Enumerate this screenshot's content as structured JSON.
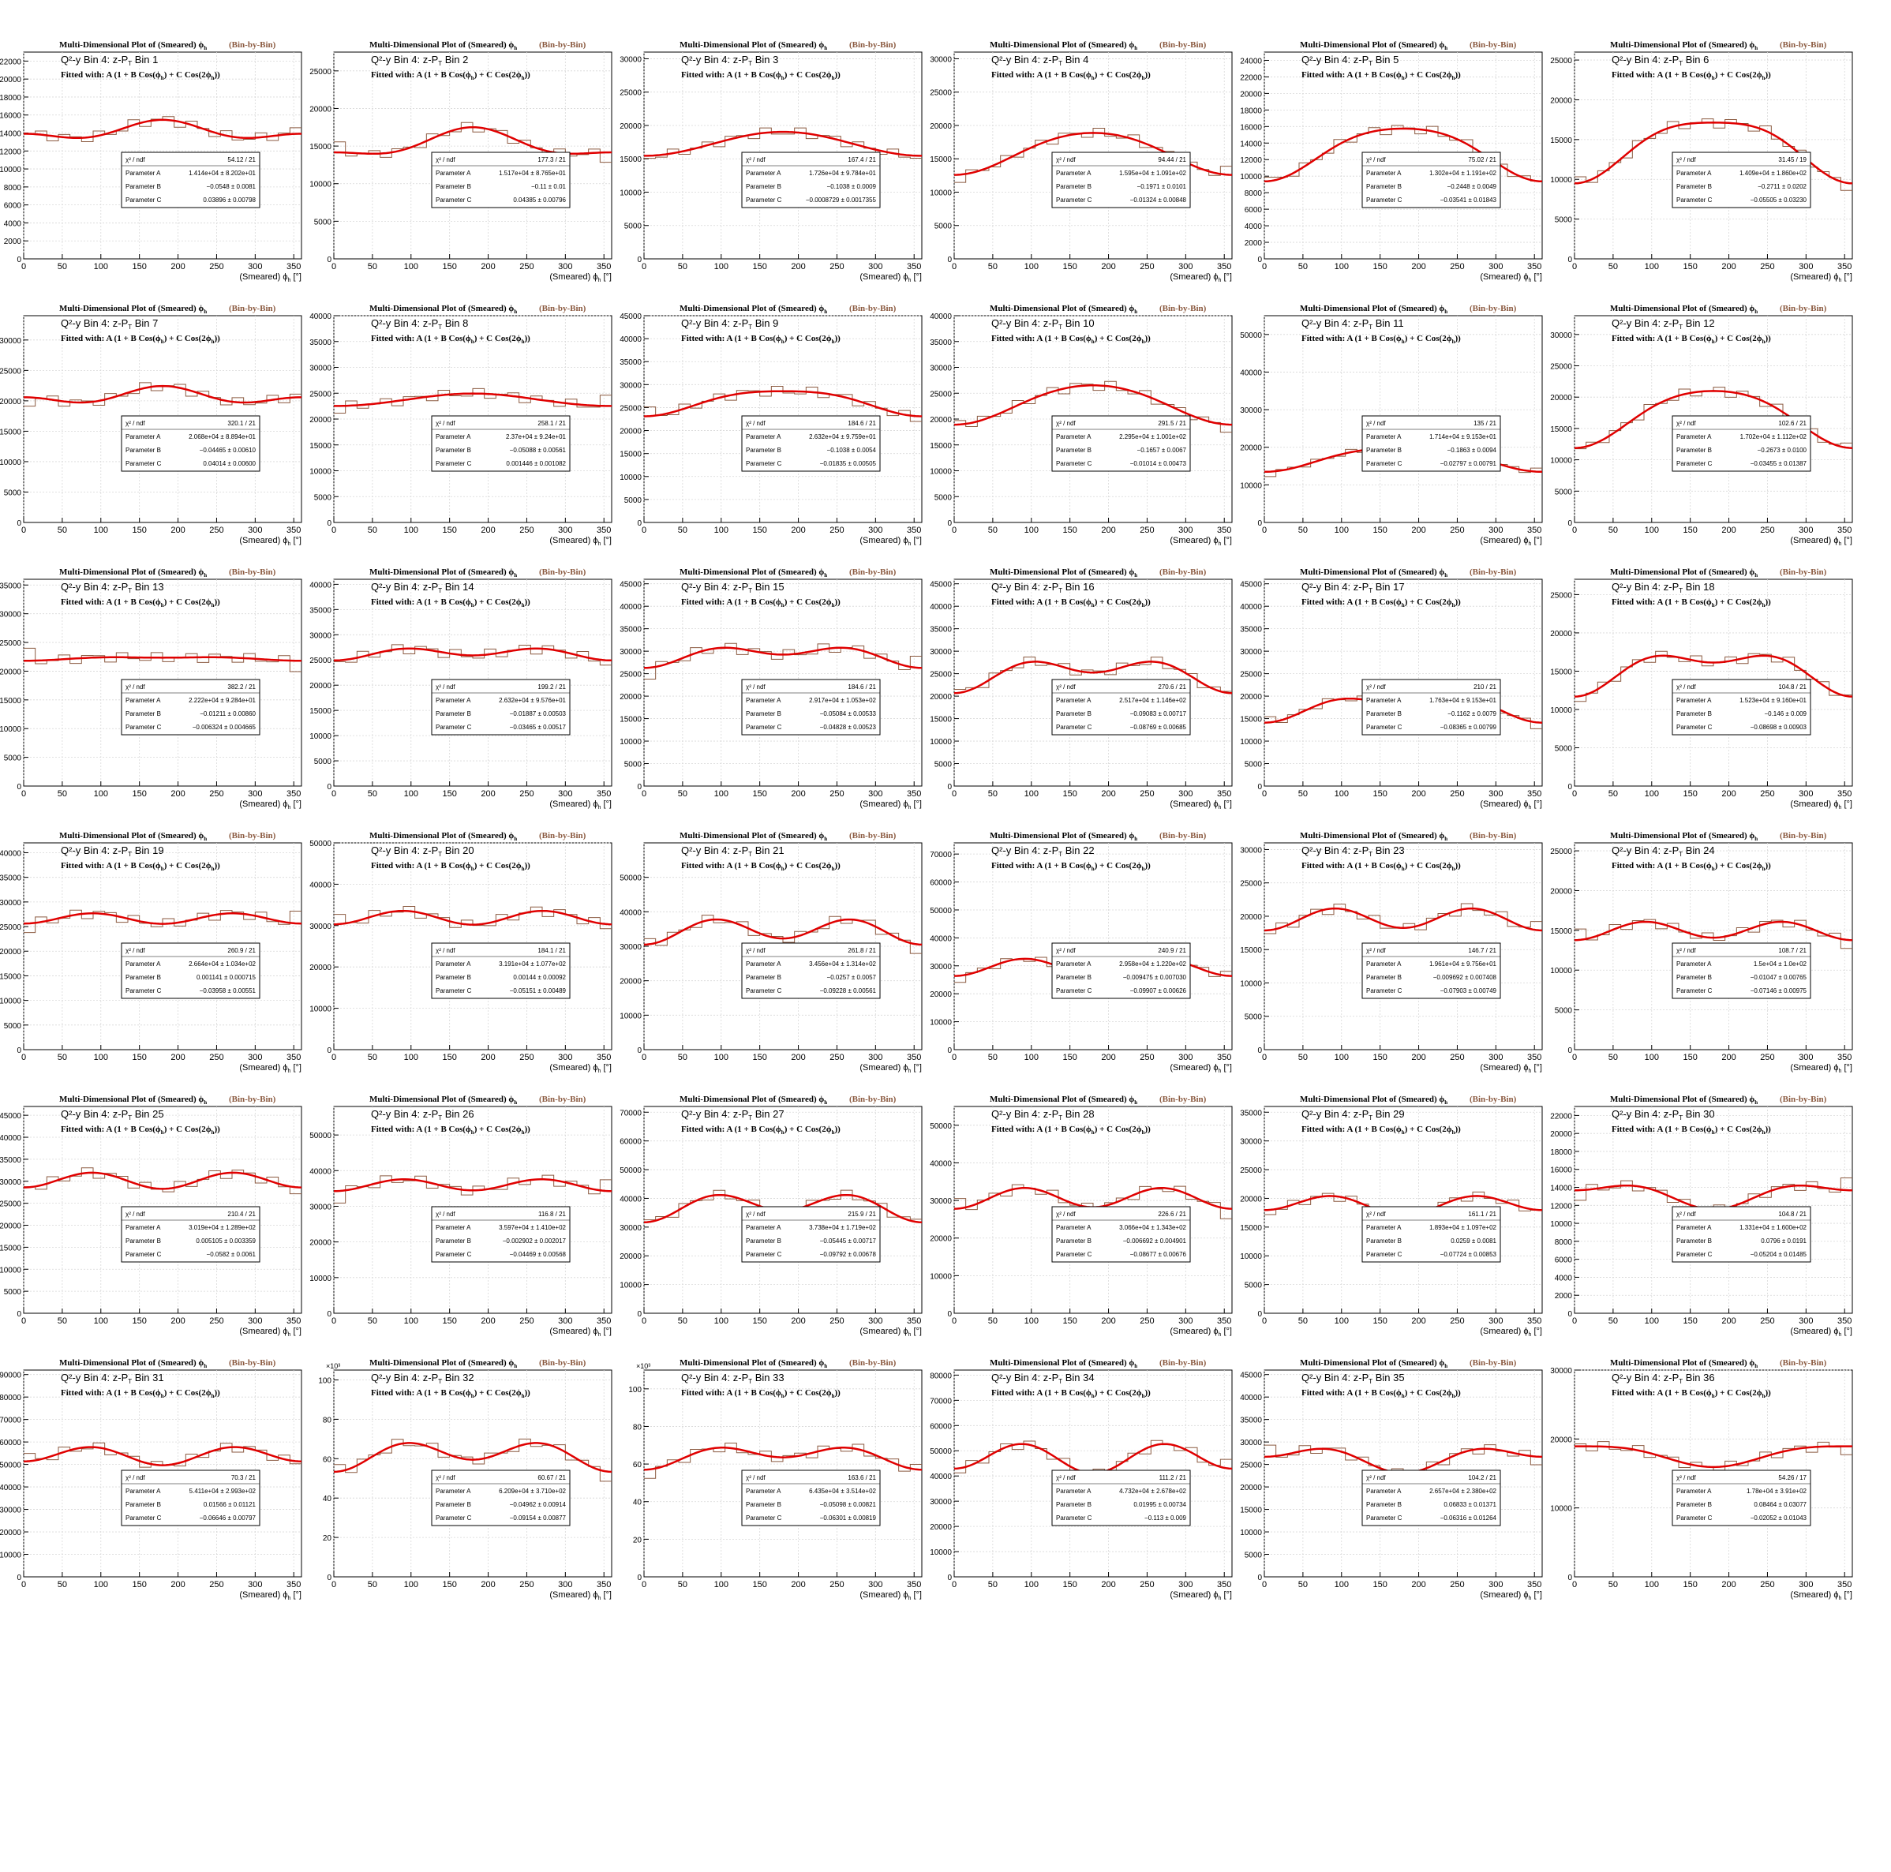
{
  "page": {
    "super_title": "Multi-Dimensional Plot of (Smeared)",
    "super_phi": "ϕ",
    "super_phi_sub": "h",
    "bin_by_bin": "(Bin-by-Bin)",
    "fit_label": "Fitted with: A (1 + B Cos(ϕ",
    "fit_mid": ") + C Cos(2ϕ",
    "fit_end": "))",
    "x_axis_label": "(Smeared) ϕ",
    "x_axis_unit": " [°]",
    "chi2_label": "χ² / ndf",
    "param_a_label": "Parameter A",
    "param_b_label": "Parameter B",
    "param_c_label": "Parameter C",
    "exp3_label": "×10³"
  },
  "colors": {
    "fit_line": "#e00000",
    "histogram": "#8b5a40",
    "title_note": "#8b5a40",
    "grid": "#d8d8d8"
  },
  "chart_data": [
    {
      "type": "bar",
      "title": "Q²-y Bin 4: z-P_T Bin 1",
      "ylim": [
        0,
        23000
      ],
      "yticks": [
        2000,
        4000,
        6000,
        8000,
        10000,
        12000,
        14000,
        16000,
        18000,
        20000,
        22000
      ],
      "fit": {
        "A": 14140,
        "B": -0.0548,
        "C": 0.03896
      },
      "stats": {
        "chi2": "54.12 / 21",
        "A": "1.414e+04 ± 8.202e+01",
        "B": "−0.0548 ± 0.0081",
        "C": "0.03896 ± 0.00798"
      }
    },
    {
      "type": "bar",
      "title": "Q²-y Bin 4: z-P_T Bin 2",
      "ylim": [
        0,
        27500
      ],
      "yticks": [
        5000,
        10000,
        15000,
        20000,
        25000
      ],
      "fit": {
        "A": 15170,
        "B": -0.11,
        "C": 0.04385
      },
      "stats": {
        "chi2": "177.3 / 21",
        "A": "1.517e+04 ± 8.765e+01",
        "B": "−0.11 ± 0.01",
        "C": "0.04385 ± 0.00796"
      }
    },
    {
      "type": "bar",
      "title": "Q²-y Bin 4: z-P_T Bin 3",
      "ylim": [
        0,
        31000
      ],
      "yticks": [
        5000,
        10000,
        15000,
        20000,
        25000,
        30000
      ],
      "fit": {
        "A": 17260,
        "B": -0.1038,
        "C": -0.0008729
      },
      "stats": {
        "chi2": "167.4 / 21",
        "A": "1.726e+04 ± 9.784e+01",
        "B": "−0.1038 ± 0.0009",
        "C": "−0.0008729 ± 0.0017355"
      }
    },
    {
      "type": "bar",
      "title": "Q²-y Bin 4: z-P_T Bin 4",
      "ylim": [
        0,
        31000
      ],
      "yticks": [
        5000,
        10000,
        15000,
        20000,
        25000,
        30000
      ],
      "fit": {
        "A": 15950,
        "B": -0.1971,
        "C": -0.01324
      },
      "stats": {
        "chi2": "94.44 / 21",
        "A": "1.595e+04 ± 1.091e+02",
        "B": "−0.1971 ± 0.0101",
        "C": "−0.01324 ± 0.00848"
      }
    },
    {
      "type": "bar",
      "title": "Q²-y Bin 4: z-P_T Bin 5",
      "ylim": [
        0,
        25000
      ],
      "yticks": [
        2000,
        4000,
        6000,
        8000,
        10000,
        12000,
        14000,
        16000,
        18000,
        20000,
        22000,
        24000
      ],
      "fit": {
        "A": 13020,
        "B": -0.2448,
        "C": -0.03541
      },
      "stats": {
        "chi2": "75.02 / 21",
        "A": "1.302e+04 ± 1.191e+02",
        "B": "−0.2448 ± 0.0049",
        "C": "−0.03541 ± 0.01843"
      }
    },
    {
      "type": "bar",
      "title": "Q²-y Bin 4: z-P_T Bin 6",
      "ylim": [
        0,
        26000
      ],
      "yticks": [
        5000,
        10000,
        15000,
        20000,
        25000
      ],
      "fit": {
        "A": 14090,
        "B": -0.2711,
        "C": -0.05505
      },
      "stats": {
        "chi2": "31.45 / 19",
        "A": "1.409e+04 ± 1.860e+02",
        "B": "−0.2711 ± 0.0202",
        "C": "−0.05505 ± 0.03230"
      }
    },
    {
      "type": "bar",
      "title": "Q²-y Bin 4: z-P_T Bin 7",
      "ylim": [
        0,
        34000
      ],
      "yticks": [
        5000,
        10000,
        15000,
        20000,
        25000,
        30000
      ],
      "fit": {
        "A": 20680,
        "B": -0.04465,
        "C": 0.04014
      },
      "stats": {
        "chi2": "320.1 / 21",
        "A": "2.068e+04 ± 8.894e+01",
        "B": "−0.04465 ± 0.00610",
        "C": "0.04014 ± 0.00600"
      }
    },
    {
      "type": "bar",
      "title": "Q²-y Bin 4: z-P_T Bin 8",
      "ylim": [
        0,
        40000
      ],
      "yticks": [
        5000,
        10000,
        15000,
        20000,
        25000,
        30000,
        35000,
        40000
      ],
      "fit": {
        "A": 23700,
        "B": -0.05088,
        "C": 0.001446
      },
      "stats": {
        "chi2": "258.1 / 21",
        "A": "2.37e+04 ± 9.24e+01",
        "B": "−0.05088 ± 0.00561",
        "C": "0.001446 ± 0.001082"
      }
    },
    {
      "type": "bar",
      "title": "Q²-y Bin 4: z-P_T Bin 9",
      "ylim": [
        0,
        45000
      ],
      "yticks": [
        5000,
        10000,
        15000,
        20000,
        25000,
        30000,
        35000,
        40000,
        45000
      ],
      "fit": {
        "A": 26320,
        "B": -0.1038,
        "C": -0.01835
      },
      "stats": {
        "chi2": "184.6 / 21",
        "A": "2.632e+04 ± 9.759e+01",
        "B": "−0.1038 ± 0.0054",
        "C": "−0.01835 ± 0.00505"
      }
    },
    {
      "type": "bar",
      "title": "Q²-y Bin 4: z-P_T Bin 10",
      "ylim": [
        0,
        40000
      ],
      "yticks": [
        5000,
        10000,
        15000,
        20000,
        25000,
        30000,
        35000,
        40000
      ],
      "fit": {
        "A": 22950,
        "B": -0.1657,
        "C": -0.01014
      },
      "stats": {
        "chi2": "291.5 / 21",
        "A": "2.295e+04 ± 1.001e+02",
        "B": "−0.1657 ± 0.0067",
        "C": "−0.01014 ± 0.00473"
      }
    },
    {
      "type": "bar",
      "title": "Q²-y Bin 4: z-P_T Bin 11",
      "ylim": [
        0,
        55000
      ],
      "yticks": [
        10000,
        20000,
        30000,
        40000,
        50000
      ],
      "fit": {
        "A": 17140,
        "B": -0.1863,
        "C": -0.02797
      },
      "stats": {
        "chi2": "135 / 21",
        "A": "1.714e+04 ± 9.153e+01",
        "B": "−0.1863 ± 0.0094",
        "C": "−0.02797 ± 0.00791"
      }
    },
    {
      "type": "bar",
      "title": "Q²-y Bin 4: z-P_T Bin 12",
      "ylim": [
        0,
        33000
      ],
      "yticks": [
        5000,
        10000,
        15000,
        20000,
        25000,
        30000
      ],
      "fit": {
        "A": 17020,
        "B": -0.2673,
        "C": -0.03455
      },
      "stats": {
        "chi2": "102.6 / 21",
        "A": "1.702e+04 ± 1.112e+02",
        "B": "−0.2673 ± 0.0100",
        "C": "−0.03455 ± 0.01387"
      }
    },
    {
      "type": "bar",
      "title": "Q²-y Bin 4: z-P_T Bin 13",
      "ylim": [
        0,
        36000
      ],
      "yticks": [
        5000,
        10000,
        15000,
        20000,
        25000,
        30000,
        35000
      ],
      "fit": {
        "A": 22220,
        "B": -0.01211,
        "C": -0.006324
      },
      "stats": {
        "chi2": "382.2 / 21",
        "A": "2.222e+04 ± 9.284e+01",
        "B": "−0.01211 ± 0.00860",
        "C": "−0.006324 ± 0.004665"
      }
    },
    {
      "type": "bar",
      "title": "Q²-y Bin 4: z-P_T Bin 14",
      "ylim": [
        0,
        41000
      ],
      "yticks": [
        5000,
        10000,
        15000,
        20000,
        25000,
        30000,
        35000,
        40000
      ],
      "fit": {
        "A": 26320,
        "B": -0.01887,
        "C": -0.03465
      },
      "stats": {
        "chi2": "199.2 / 21",
        "A": "2.632e+04 ± 9.576e+01",
        "B": "−0.01887 ± 0.00503",
        "C": "−0.03465 ± 0.00517"
      }
    },
    {
      "type": "bar",
      "title": "Q²-y Bin 4: z-P_T Bin 15",
      "ylim": [
        0,
        46000
      ],
      "yticks": [
        5000,
        10000,
        15000,
        20000,
        25000,
        30000,
        35000,
        40000,
        45000
      ],
      "fit": {
        "A": 29170,
        "B": -0.05084,
        "C": -0.04828
      },
      "stats": {
        "chi2": "184.6 / 21",
        "A": "2.917e+04 ± 1.053e+02",
        "B": "−0.05084 ± 0.00533",
        "C": "−0.04828 ± 0.00523"
      }
    },
    {
      "type": "bar",
      "title": "Q²-y Bin 4: z-P_T Bin 16",
      "ylim": [
        0,
        46000
      ],
      "yticks": [
        5000,
        10000,
        15000,
        20000,
        25000,
        30000,
        35000,
        40000,
        45000
      ],
      "fit": {
        "A": 25170,
        "B": -0.09083,
        "C": -0.08769
      },
      "stats": {
        "chi2": "270.6 / 21",
        "A": "2.517e+04 ± 1.146e+02",
        "B": "−0.09083 ± 0.00717",
        "C": "−0.08769 ± 0.00685"
      }
    },
    {
      "type": "bar",
      "title": "Q²-y Bin 4: z-P_T Bin 17",
      "ylim": [
        0,
        46000
      ],
      "yticks": [
        5000,
        10000,
        15000,
        20000,
        25000,
        30000,
        35000,
        40000,
        45000
      ],
      "fit": {
        "A": 17630,
        "B": -0.1162,
        "C": -0.08365
      },
      "stats": {
        "chi2": "210 / 21",
        "A": "1.763e+04 ± 9.153e+01",
        "B": "−0.1162 ± 0.0079",
        "C": "−0.08365 ± 0.00799"
      }
    },
    {
      "type": "bar",
      "title": "Q²-y Bin 4: z-P_T Bin 18",
      "ylim": [
        0,
        27000
      ],
      "yticks": [
        5000,
        10000,
        15000,
        20000,
        25000
      ],
      "fit": {
        "A": 15230,
        "B": -0.146,
        "C": -0.08698
      },
      "stats": {
        "chi2": "104.8 / 21",
        "A": "1.523e+04 ± 9.160e+01",
        "B": "−0.146 ± 0.009",
        "C": "−0.08698 ± 0.00903"
      }
    },
    {
      "type": "bar",
      "title": "Q²-y Bin 4: z-P_T Bin 19",
      "ylim": [
        0,
        42000
      ],
      "yticks": [
        5000,
        10000,
        15000,
        20000,
        25000,
        30000,
        35000,
        40000
      ],
      "fit": {
        "A": 26640,
        "B": 0.001141,
        "C": -0.03958
      },
      "stats": {
        "chi2": "260.9 / 21",
        "A": "2.664e+04 ± 1.034e+02",
        "B": "0.001141 ± 0.000715",
        "C": "−0.03958 ± 0.00551"
      }
    },
    {
      "type": "bar",
      "title": "Q²-y Bin 4: z-P_T Bin 20",
      "ylim": [
        0,
        50000
      ],
      "yticks": [
        10000,
        20000,
        30000,
        40000,
        50000
      ],
      "fit": {
        "A": 31910,
        "B": 0.00144,
        "C": -0.05151
      },
      "stats": {
        "chi2": "184.1 / 21",
        "A": "3.191e+04 ± 1.077e+02",
        "B": "0.00144 ± 0.00092",
        "C": "−0.05151 ± 0.00489"
      }
    },
    {
      "type": "bar",
      "title": "Q²-y Bin 4: z-P_T Bin 21",
      "ylim": [
        0,
        60000
      ],
      "yticks": [
        10000,
        20000,
        30000,
        40000,
        50000
      ],
      "fit": {
        "A": 34560,
        "B": -0.0257,
        "C": -0.09228
      },
      "stats": {
        "chi2": "261.8 / 21",
        "A": "3.456e+04 ± 1.314e+02",
        "B": "−0.0257 ± 0.0057",
        "C": "−0.09228 ± 0.00561"
      }
    },
    {
      "type": "bar",
      "title": "Q²-y Bin 4: z-P_T Bin 22",
      "ylim": [
        0,
        74000
      ],
      "yticks": [
        10000,
        20000,
        30000,
        40000,
        50000,
        60000,
        70000
      ],
      "fit": {
        "A": 29580,
        "B": -0.009475,
        "C": -0.09907
      },
      "stats": {
        "chi2": "240.9 / 21",
        "A": "2.958e+04 ± 1.220e+02",
        "B": "−0.009475 ± 0.007030",
        "C": "−0.09907 ± 0.00626"
      }
    },
    {
      "type": "bar",
      "title": "Q²-y Bin 4: z-P_T Bin 23",
      "ylim": [
        0,
        31000
      ],
      "yticks": [
        5000,
        10000,
        15000,
        20000,
        25000,
        30000
      ],
      "fit": {
        "A": 19610,
        "B": -0.009692,
        "C": -0.07903
      },
      "stats": {
        "chi2": "146.7 / 21",
        "A": "1.961e+04 ± 9.756e+01",
        "B": "−0.009692 ± 0.007408",
        "C": "−0.07903 ± 0.00749"
      }
    },
    {
      "type": "bar",
      "title": "Q²-y Bin 4: z-P_T Bin 24",
      "ylim": [
        0,
        26000
      ],
      "yticks": [
        5000,
        10000,
        15000,
        20000,
        25000
      ],
      "fit": {
        "A": 15000,
        "B": -0.01047,
        "C": -0.07146
      },
      "stats": {
        "chi2": "108.7 / 21",
        "A": "1.5e+04 ± 1.0e+02",
        "B": "−0.01047 ± 0.00765",
        "C": "−0.07146 ± 0.00975"
      }
    },
    {
      "type": "bar",
      "title": "Q²-y Bin 4: z-P_T Bin 25",
      "ylim": [
        0,
        47000
      ],
      "yticks": [
        5000,
        10000,
        15000,
        20000,
        25000,
        30000,
        35000,
        40000,
        45000
      ],
      "fit": {
        "A": 30190,
        "B": 0.005105,
        "C": -0.0582
      },
      "stats": {
        "chi2": "210.4 / 21",
        "A": "3.019e+04 ± 1.289e+02",
        "B": "0.005105 ± 0.003359",
        "C": "−0.0582 ± 0.0061"
      }
    },
    {
      "type": "bar",
      "title": "Q²-y Bin 4: z-P_T Bin 26",
      "ylim": [
        0,
        58000
      ],
      "yticks": [
        10000,
        20000,
        30000,
        40000,
        50000
      ],
      "fit": {
        "A": 35970,
        "B": -0.002902,
        "C": -0.04469
      },
      "stats": {
        "chi2": "116.8 / 21",
        "A": "3.597e+04 ± 1.410e+02",
        "B": "−0.002902 ± 0.002017",
        "C": "−0.04469 ± 0.00568"
      }
    },
    {
      "type": "bar",
      "title": "Q²-y Bin 4: z-P_T Bin 27",
      "ylim": [
        0,
        72000
      ],
      "yticks": [
        10000,
        20000,
        30000,
        40000,
        50000,
        60000,
        70000
      ],
      "fit": {
        "A": 37380,
        "B": -0.05445,
        "C": -0.09792
      },
      "stats": {
        "chi2": "215.9 / 21",
        "A": "3.738e+04 ± 1.719e+02",
        "B": "−0.05445 ± 0.00717",
        "C": "−0.09792 ± 0.00678"
      }
    },
    {
      "type": "bar",
      "title": "Q²-y Bin 4: z-P_T Bin 28",
      "ylim": [
        0,
        55000
      ],
      "yticks": [
        10000,
        20000,
        30000,
        40000,
        50000
      ],
      "fit": {
        "A": 30660,
        "B": -0.006692,
        "C": -0.08677
      },
      "stats": {
        "chi2": "226.6 / 21",
        "A": "3.066e+04 ± 1.343e+02",
        "B": "−0.006692 ± 0.004901",
        "C": "−0.08677 ± 0.00676"
      }
    },
    {
      "type": "bar",
      "title": "Q²-y Bin 4: z-P_T Bin 29",
      "ylim": [
        0,
        36000
      ],
      "yticks": [
        5000,
        10000,
        15000,
        20000,
        25000,
        30000,
        35000
      ],
      "fit": {
        "A": 18930,
        "B": 0.0259,
        "C": -0.07724
      },
      "stats": {
        "chi2": "161.1 / 21",
        "A": "1.893e+04 ± 1.097e+02",
        "B": "0.0259 ± 0.0081",
        "C": "−0.07724 ± 0.00853"
      }
    },
    {
      "type": "bar",
      "title": "Q²-y Bin 4: z-P_T Bin 30",
      "ylim": [
        0,
        23000
      ],
      "yticks": [
        2000,
        4000,
        6000,
        8000,
        10000,
        12000,
        14000,
        16000,
        18000,
        20000,
        22000
      ],
      "fit": {
        "A": 13310,
        "B": 0.0796,
        "C": -0.05204
      },
      "stats": {
        "chi2": "104.8 / 21",
        "A": "1.331e+04 ± 1.600e+02",
        "B": "0.0796 ± 0.0191",
        "C": "−0.05204 ± 0.01485"
      }
    },
    {
      "type": "bar",
      "title": "Q²-y Bin 4: z-P_T Bin 31",
      "ylim": [
        0,
        92000
      ],
      "yticks": [
        10000,
        20000,
        30000,
        40000,
        50000,
        60000,
        70000,
        80000,
        90000
      ],
      "fit": {
        "A": 54110,
        "B": 0.01566,
        "C": -0.06646
      },
      "stats": {
        "chi2": "70.3 / 21",
        "A": "5.411e+04 ± 2.993e+02",
        "B": "0.01566 ± 0.01121",
        "C": "−0.06646 ± 0.00797"
      }
    },
    {
      "type": "bar",
      "title": "Q²-y Bin 4: z-P_T Bin 32",
      "ylim": [
        0,
        105
      ],
      "yticks": [
        20,
        40,
        60,
        80,
        100
      ],
      "exp3": true,
      "fit": {
        "A": 62.09,
        "B": -0.04962,
        "C": -0.09154
      },
      "stats": {
        "chi2": "60.67 / 21",
        "A": "6.209e+04 ± 3.710e+02",
        "B": "−0.04962 ± 0.00914",
        "C": "−0.09154 ± 0.00877"
      }
    },
    {
      "type": "bar",
      "title": "Q²-y Bin 4: z-P_T Bin 33",
      "ylim": [
        0,
        110
      ],
      "yticks": [
        20,
        40,
        60,
        80,
        100
      ],
      "exp3": true,
      "fit": {
        "A": 64.35,
        "B": -0.05098,
        "C": -0.06301
      },
      "stats": {
        "chi2": "163.6 / 21",
        "A": "6.435e+04 ± 3.514e+02",
        "B": "−0.05098 ± 0.00821",
        "C": "−0.06301 ± 0.00819"
      }
    },
    {
      "type": "bar",
      "title": "Q²-y Bin 4: z-P_T Bin 34",
      "ylim": [
        0,
        82000
      ],
      "yticks": [
        10000,
        20000,
        30000,
        40000,
        50000,
        60000,
        70000,
        80000
      ],
      "fit": {
        "A": 47320,
        "B": 0.01995,
        "C": -0.113
      },
      "stats": {
        "chi2": "111.2 / 21",
        "A": "4.732e+04 ± 2.678e+02",
        "B": "0.01995 ± 0.00734",
        "C": "−0.113 ± 0.009"
      }
    },
    {
      "type": "bar",
      "title": "Q²-y Bin 4: z-P_T Bin 35",
      "ylim": [
        0,
        46000
      ],
      "yticks": [
        5000,
        10000,
        15000,
        20000,
        25000,
        30000,
        35000,
        40000,
        45000
      ],
      "fit": {
        "A": 26570,
        "B": 0.06833,
        "C": -0.06316
      },
      "stats": {
        "chi2": "104.2 / 21",
        "A": "2.657e+04 ± 2.380e+02",
        "B": "0.06833 ± 0.01371",
        "C": "−0.06316 ± 0.01264"
      }
    },
    {
      "type": "bar",
      "title": "Q²-y Bin 4: z-P_T Bin 36",
      "ylim": [
        0,
        30000
      ],
      "yticks": [
        10000,
        20000,
        30000
      ],
      "fit": {
        "A": 17800,
        "B": 0.08464,
        "C": -0.02052
      },
      "stats": {
        "chi2": "54.26 / 17",
        "A": "1.78e+04 ± 3.91e+02",
        "B": "0.08464 ± 0.03077",
        "C": "−0.02052 ± 0.01043"
      }
    }
  ]
}
